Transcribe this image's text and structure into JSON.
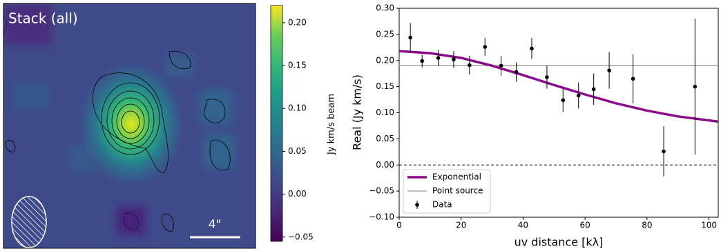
{
  "chart_data": [
    {
      "type": "image",
      "title": "Stack (all)",
      "scalebar_label": "4\"",
      "colorbar_label": "Jy km/s beam",
      "clim": [
        -0.055,
        0.22
      ],
      "cticks": [
        {
          "value": 0.2,
          "label": "0.20"
        },
        0.15,
        {
          "value": 0.1,
          "label": "0.10"
        },
        0.05,
        {
          "value": 0,
          "label": "0.00"
        },
        {
          "value": -0.05,
          "label": "−0.05"
        }
      ]
    },
    {
      "type": "scatter",
      "xlabel": "uv distance [kλ]",
      "ylabel": "Real (Jy km/s)",
      "xlim": [
        0,
        103
      ],
      "ylim": [
        -0.1,
        0.3
      ],
      "xticks": [
        0,
        20,
        40,
        60,
        80,
        100
      ],
      "yticks": [
        {
          "value": 0.3,
          "label": "0.30"
        },
        0.25,
        {
          "value": 0.2,
          "label": "0.20"
        },
        0.15,
        {
          "value": 0.1,
          "label": "0.10"
        },
        0.05,
        {
          "value": 0,
          "label": "0.00"
        },
        {
          "value": -0.05,
          "label": "−0.05"
        },
        {
          "value": -0.1,
          "label": "−0.10"
        }
      ],
      "reference_line": 0,
      "legend": "lower left",
      "series": [
        {
          "name": "Exponential",
          "kind": "line",
          "color": "#8b0a8b",
          "x": [
            0,
            10,
            20,
            30,
            40,
            50,
            60,
            70,
            80,
            90,
            103
          ],
          "values": [
            0.218,
            0.214,
            0.205,
            0.19,
            0.172,
            0.153,
            0.135,
            0.118,
            0.104,
            0.093,
            0.083
          ]
        },
        {
          "name": "Point source",
          "kind": "line",
          "color": "#999999",
          "x": [
            0,
            103
          ],
          "values": [
            0.19,
            0.19
          ]
        },
        {
          "name": "Data",
          "kind": "errorbar",
          "color": "#000000",
          "x": [
            3.6,
            7.4,
            12.6,
            17.6,
            22.7,
            27.7,
            32.9,
            37.8,
            42.8,
            47.7,
            52.9,
            57.9,
            62.8,
            67.8,
            75.5,
            85.4,
            95.5
          ],
          "values": [
            0.244,
            0.199,
            0.205,
            0.202,
            0.191,
            0.226,
            0.19,
            0.178,
            0.223,
            0.168,
            0.124,
            0.133,
            0.145,
            0.181,
            0.165,
            0.026,
            0.15
          ],
          "errors": [
            0.028,
            0.012,
            0.015,
            0.016,
            0.018,
            0.017,
            0.019,
            0.018,
            0.02,
            0.022,
            0.022,
            0.025,
            0.03,
            0.035,
            0.047,
            0.048,
            0.13
          ]
        }
      ]
    }
  ]
}
